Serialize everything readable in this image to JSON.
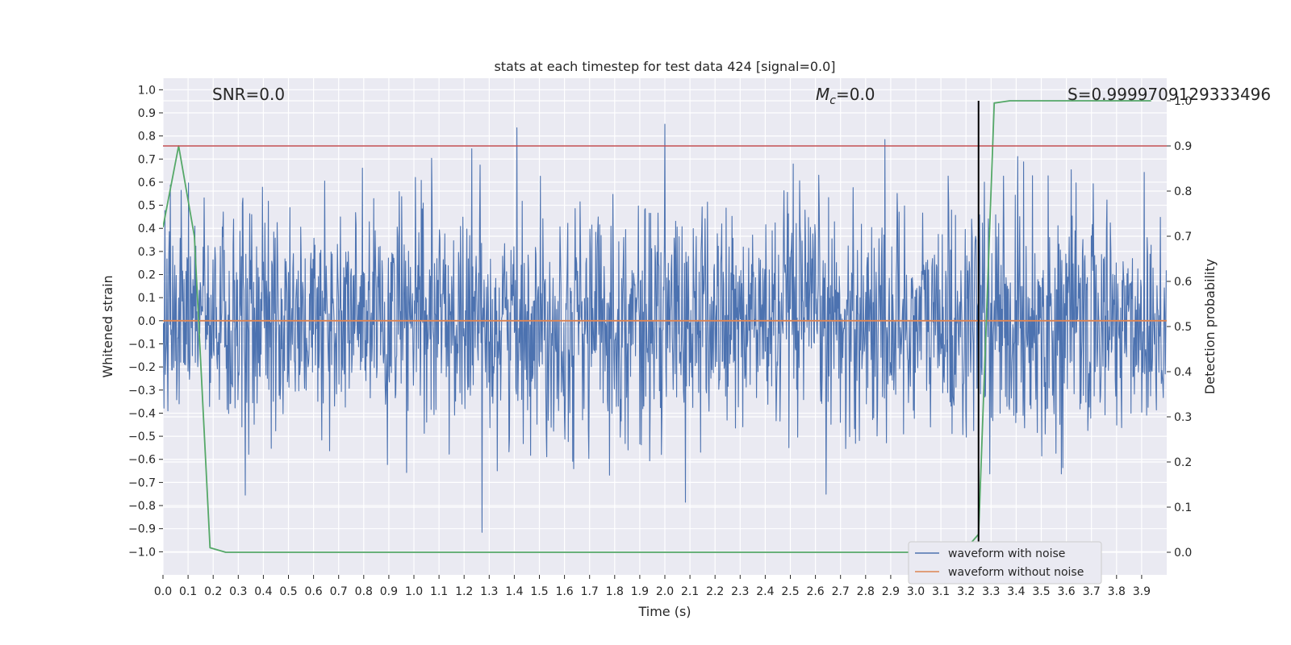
{
  "chart_data": {
    "type": "line",
    "title": "stats at each timestep for test data 424 [signal=0.0]",
    "xlabel": "Time (s)",
    "ylabel": "Whitened strain",
    "y2label": "Detection probability",
    "xlim": [
      0.0,
      4.0
    ],
    "ylim": [
      -1.1,
      1.05
    ],
    "y2lim": [
      -0.05,
      1.05
    ],
    "xticks": [
      "0.0",
      "0.1",
      "0.2",
      "0.3",
      "0.4",
      "0.5",
      "0.6",
      "0.7",
      "0.8",
      "0.9",
      "1.0",
      "1.1",
      "1.2",
      "1.3",
      "1.4",
      "1.5",
      "1.6",
      "1.7",
      "1.8",
      "1.9",
      "2.0",
      "2.1",
      "2.2",
      "2.3",
      "2.4",
      "2.5",
      "2.6",
      "2.7",
      "2.8",
      "2.9",
      "3.0",
      "3.1",
      "3.2",
      "3.3",
      "3.4",
      "3.5",
      "3.6",
      "3.7",
      "3.8",
      "3.9"
    ],
    "yticks": [
      "1.0",
      "0.9",
      "0.8",
      "0.7",
      "0.6",
      "0.5",
      "0.4",
      "0.3",
      "0.2",
      "0.1",
      "0.0",
      "−0.1",
      "−0.2",
      "−0.3",
      "−0.4",
      "−0.5",
      "−0.6",
      "−0.7",
      "−0.8",
      "−0.9",
      "−1.0"
    ],
    "y2ticks": [
      "0.0",
      "0.1",
      "0.2",
      "0.3",
      "0.4",
      "0.5",
      "0.6",
      "0.7",
      "0.8",
      "0.9",
      "1.0"
    ],
    "annotations": {
      "snr": "SNR=0.0",
      "mc_symbol": "M",
      "mc_sub": "c",
      "mc_value": "=0.0",
      "s_value": "S=0.9999709129333496"
    },
    "threshold_line": {
      "axis": "y2",
      "value": 0.9,
      "color": "#c44e52"
    },
    "event_marker": {
      "x": 3.25,
      "color": "#000000"
    },
    "grid": true,
    "legend": {
      "placement": "lower-right",
      "entries": [
        "waveform with noise",
        "waveform without noise"
      ]
    },
    "series": [
      {
        "name": "waveform with noise",
        "axis": "y",
        "color": "#4c72b0",
        "kind": "noise",
        "n_samples": 2048,
        "approx_std": 0.25,
        "approx_range": [
          -1.0,
          0.95
        ]
      },
      {
        "name": "waveform without noise",
        "axis": "y",
        "color": "#dd8452",
        "x": [
          0.0,
          4.0
        ],
        "values": [
          0.0,
          0.0
        ]
      },
      {
        "name": "detection probability",
        "axis": "y2",
        "color": "#55a868",
        "x": [
          0.0,
          0.0625,
          0.125,
          0.1875,
          0.25,
          0.3125,
          0.5,
          1.0,
          1.5,
          2.0,
          2.5,
          3.0,
          3.125,
          3.1875,
          3.25,
          3.3125,
          3.375,
          3.5,
          3.75,
          3.9375
        ],
        "values": [
          0.72,
          0.9,
          0.7,
          0.01,
          0.0,
          0.0,
          0.0,
          0.0,
          0.0,
          0.0,
          0.0,
          0.0,
          0.0,
          0.0,
          0.04,
          0.995,
          1.0,
          1.0,
          1.0,
          1.0
        ]
      }
    ]
  }
}
